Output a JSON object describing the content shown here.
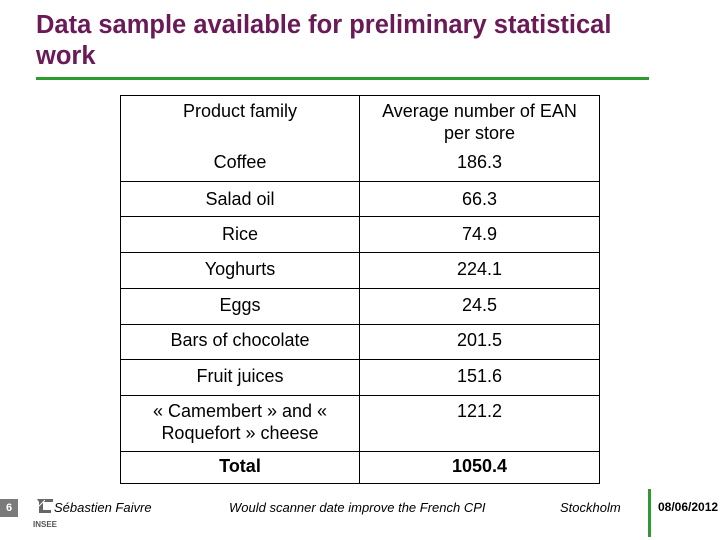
{
  "title": "Data sample available for preliminary statistical work",
  "table": {
    "header_col1": "Product family",
    "header_col2": "Average number of EAN per store",
    "rows": [
      {
        "product": "Coffee",
        "value": "186.3"
      },
      {
        "product": "Salad oil",
        "value": "66.3"
      },
      {
        "product": "Rice",
        "value": "74.9"
      },
      {
        "product": "Yoghurts",
        "value": "224.1"
      },
      {
        "product": "Eggs",
        "value": "24.5"
      },
      {
        "product": "Bars of chocolate",
        "value": "201.5"
      },
      {
        "product": "Fruit juices",
        "value": "151.6"
      },
      {
        "product": "« Camembert » and « Roquefort » cheese",
        "value": "121.2"
      }
    ],
    "total_label": "Total",
    "total_value": "1050.4"
  },
  "footer": {
    "page_number": "6",
    "author": "Sébastien Faivre",
    "presentation_title": "Would scanner date improve the French CPI",
    "location": "Stockholm",
    "date": "08/06/2012",
    "logo_text": "INSEE"
  },
  "colors": {
    "title": "#6a1b57",
    "accent_rule": "#2e9b2e"
  }
}
